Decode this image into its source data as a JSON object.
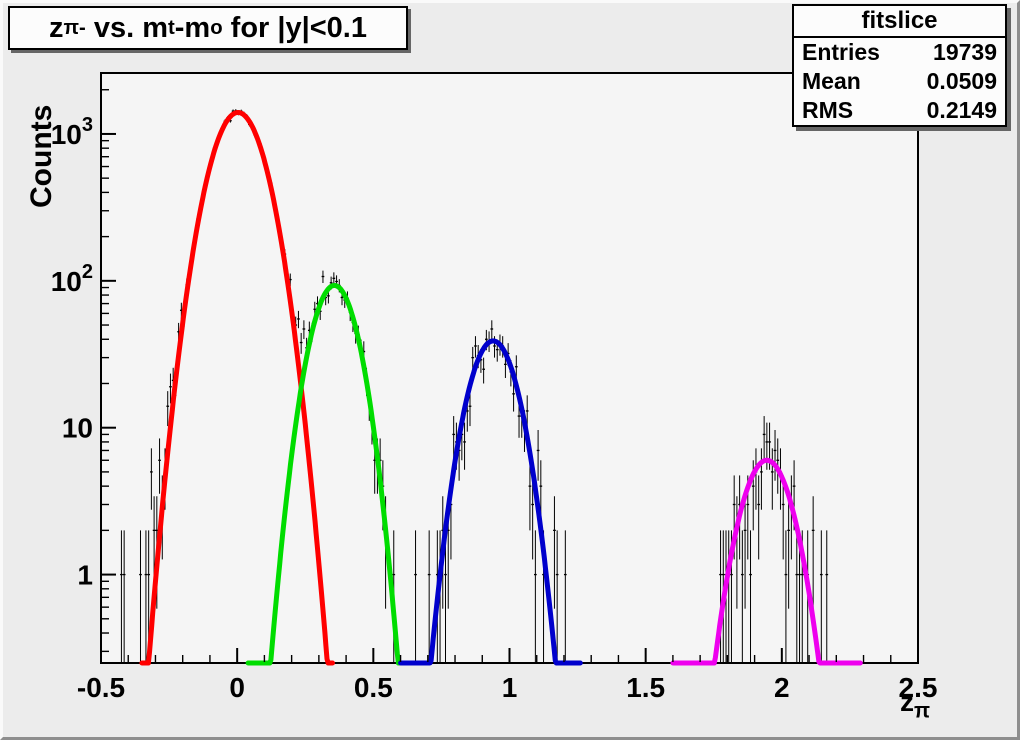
{
  "canvas": {
    "bg": "#ececec",
    "frame_bg": "#f5f5f5",
    "frame_line": "#000000"
  },
  "title_box": {
    "part1": "z",
    "sub1": "π-",
    "part2": " vs. m",
    "sub2": "t",
    "part3": "-m",
    "sub3": "o",
    "part4": " for |y|<0.1"
  },
  "chart_data": {
    "type": "bar",
    "subtype": "histogram-with-gaussian-fits",
    "title": "z_π- vs. m_t-m_o for |y|<0.1",
    "xlabel": "z_π",
    "xlabel_main": "z",
    "xlabel_sub": "π",
    "ylabel": "Counts",
    "x_axis": {
      "min": -0.5,
      "max": 2.5,
      "major_ticks": [
        -0.5,
        0,
        0.5,
        1,
        1.5,
        2,
        2.5
      ],
      "tick_labels": [
        "-0.5",
        "0",
        "0.5",
        "1",
        "1.5",
        "2",
        "2.5"
      ],
      "minor_step": 0.1
    },
    "y_axis": {
      "scale": "log",
      "min": 0.25,
      "max": 2600,
      "decades": [
        {
          "value": 1,
          "base": "1",
          "exp": ""
        },
        {
          "value": 10,
          "base": "10",
          "exp": ""
        },
        {
          "value": 100,
          "base": "10",
          "exp": "2"
        },
        {
          "value": 1000,
          "base": "10",
          "exp": "3"
        }
      ]
    },
    "grid": false,
    "legend": "none",
    "stats_box": {
      "title": "fitslice",
      "rows": [
        [
          "Entries",
          "19739"
        ],
        [
          "Mean",
          "0.0509"
        ],
        [
          "RMS",
          "0.2149"
        ]
      ]
    },
    "histogram": {
      "bin_width": 0.01,
      "style": "black error bars with bin-content ticks",
      "color": "#000000",
      "seed": 20,
      "tail_fraction": 0.015,
      "tail_sigma_scale": 1.8
    },
    "fits": [
      {
        "name": "gaussian-peak-0",
        "color": "#ff0000",
        "amplitude": 1400,
        "mean": 0.003,
        "sigma": 0.079,
        "draw_range": [
          -0.35,
          0.35
        ]
      },
      {
        "name": "gaussian-peak-1",
        "color": "#00dd00",
        "amplitude": 93,
        "mean": 0.357,
        "sigma": 0.068,
        "draw_range": [
          0.04,
          0.62
        ]
      },
      {
        "name": "gaussian-peak-2",
        "color": "#0000cc",
        "amplitude": 39,
        "mean": 0.94,
        "sigma": 0.072,
        "draw_range": [
          0.6,
          1.26
        ]
      },
      {
        "name": "gaussian-peak-3",
        "color": "#ee00ee",
        "amplitude": 6,
        "mean": 1.945,
        "sigma": 0.076,
        "draw_range": [
          1.6,
          2.29
        ]
      }
    ]
  }
}
